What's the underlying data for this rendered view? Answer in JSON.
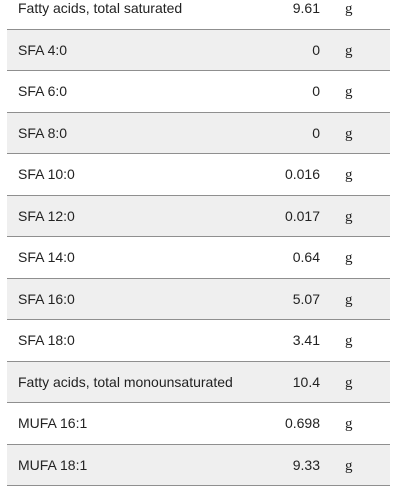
{
  "nutrient_table": {
    "rows": [
      {
        "name": "Fatty acids, total saturated",
        "value": "9.61",
        "unit": "g"
      },
      {
        "name": "SFA 4:0",
        "value": "0",
        "unit": "g"
      },
      {
        "name": "SFA 6:0",
        "value": "0",
        "unit": "g"
      },
      {
        "name": "SFA 8:0",
        "value": "0",
        "unit": "g"
      },
      {
        "name": "SFA 10:0",
        "value": "0.016",
        "unit": "g"
      },
      {
        "name": "SFA 12:0",
        "value": "0.017",
        "unit": "g"
      },
      {
        "name": "SFA 14:0",
        "value": "0.64",
        "unit": "g"
      },
      {
        "name": "SFA 16:0",
        "value": "5.07",
        "unit": "g"
      },
      {
        "name": "SFA 18:0",
        "value": "3.41",
        "unit": "g"
      },
      {
        "name": "Fatty acids, total monounsaturated",
        "value": "10.4",
        "unit": "g"
      },
      {
        "name": "MUFA 16:1",
        "value": "0.698",
        "unit": "g"
      },
      {
        "name": "MUFA 18:1",
        "value": "9.33",
        "unit": "g"
      }
    ]
  },
  "colors": {
    "row_alt_background": "#efefef",
    "row_background": "#ffffff",
    "divider": "#8f8f8f",
    "text": "#222222"
  }
}
